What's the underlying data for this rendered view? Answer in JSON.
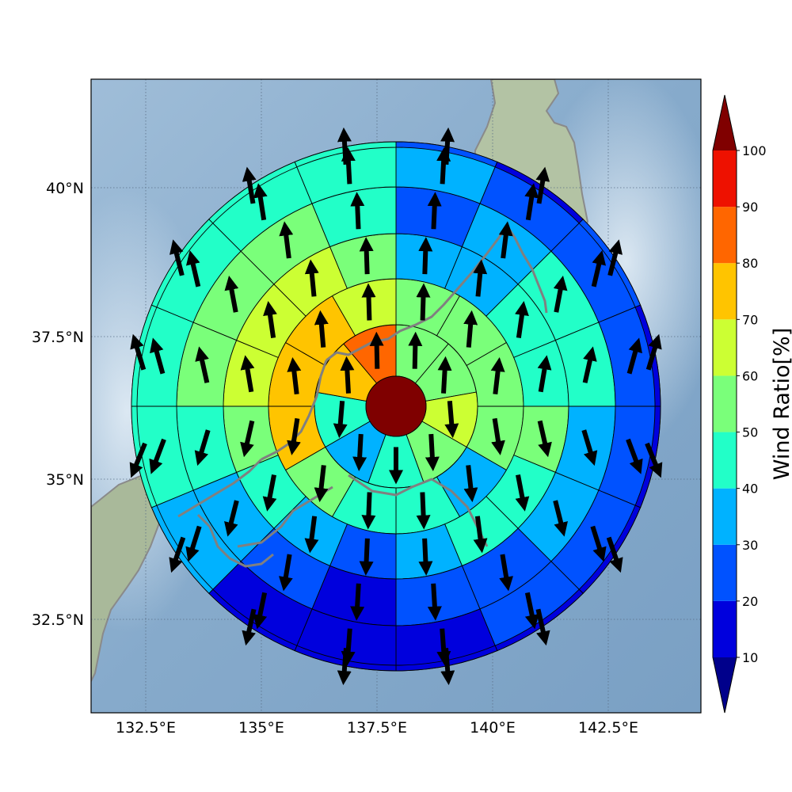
{
  "map": {
    "lon_range": [
      131.3,
      144.6
    ],
    "lat_range": [
      31.0,
      42.0
    ],
    "lon_ticks": [
      132.5,
      135,
      137.5,
      140,
      142.5
    ],
    "lat_ticks": [
      32.5,
      35,
      37.5,
      40
    ],
    "lon_tick_labels": [
      "132.5°E",
      "135°E",
      "137.5°E",
      "140°E",
      "142.5°E"
    ],
    "lat_tick_labels": [
      "32.5°N",
      "35°N",
      "37.5°N",
      "40°N"
    ],
    "grid": "dotted",
    "background": "shaded relief terrain",
    "coastline_color": "#808080"
  },
  "polar_grid": {
    "center_lon": 137.9,
    "center_lat": 36.35,
    "sectors": 16,
    "ring_count": 6,
    "center_disc_color": "#7f0000",
    "ring_cell_values": [
      [
        55,
        55,
        60,
        55,
        40,
        30,
        40,
        78,
        82
      ],
      [
        55,
        55,
        50,
        50,
        30,
        40,
        45,
        55,
        70,
        72,
        70,
        65
      ],
      [
        35,
        38,
        45,
        45,
        50,
        45,
        40,
        30,
        22,
        35,
        45,
        50,
        60,
        62,
        62,
        52
      ],
      [
        28,
        35,
        42,
        40,
        35,
        30,
        25,
        20,
        18,
        22,
        35,
        48,
        52,
        55,
        55,
        45
      ],
      [
        30,
        25,
        25,
        20,
        20,
        20,
        20,
        15,
        12,
        15,
        30,
        45,
        45,
        45,
        45,
        40
      ],
      [
        28,
        15,
        20,
        18,
        15,
        15,
        15,
        12,
        12,
        12,
        30,
        40,
        45,
        45,
        42,
        42
      ]
    ],
    "arrow_note": "black arrows show mean wind direction per cell"
  },
  "colorbar": {
    "title": "Wind Ratio[%]",
    "labels": [
      "10",
      "20",
      "30",
      "40",
      "50",
      "60",
      "70",
      "80",
      "90",
      "100"
    ],
    "level_colors": [
      "#0000dd",
      "#0052ff",
      "#00b2ff",
      "#22ffc8",
      "#7aff7a",
      "#ccff33",
      "#ffc400",
      "#ff6600",
      "#ee1100"
    ],
    "under_color": "#00008b",
    "over_color": "#800000"
  }
}
